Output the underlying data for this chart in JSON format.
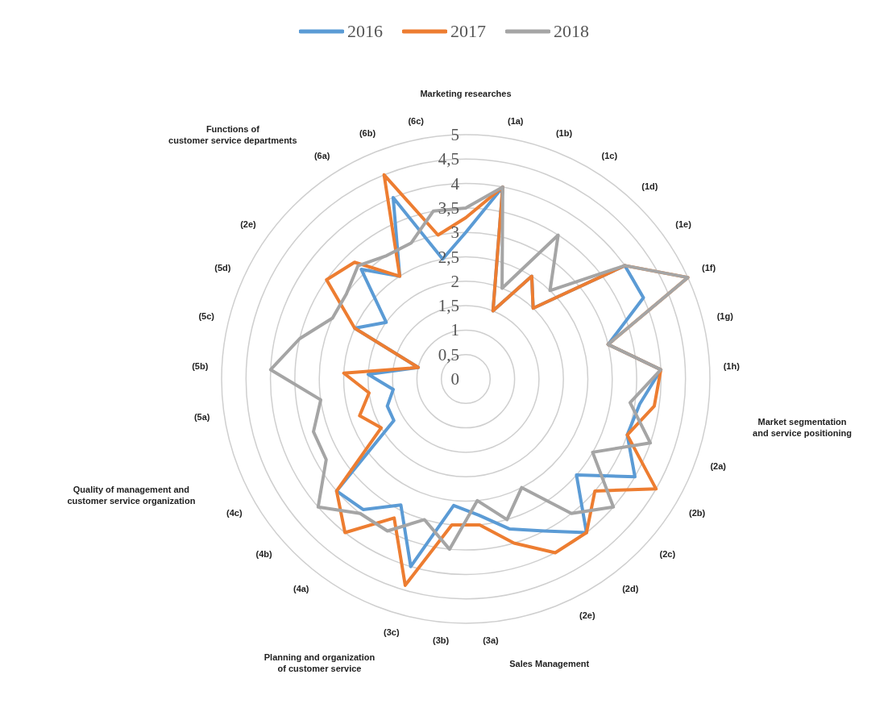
{
  "chart_data": {
    "type": "radar",
    "categories": [
      "Marketing researches",
      "(1a)",
      "(1b)",
      "(1c)",
      "(1d)",
      "(1e)",
      "(1f)",
      "(1g)",
      "(1h)",
      "Market segmentation\nand service positioning",
      "(2a)",
      "(2b)",
      "(2c)",
      "(2d)",
      "(2e)",
      "Sales Management",
      "(3a)",
      "(3b)",
      "(3c)",
      "Planning and organization\nof customer service",
      "(4a)",
      "(4b)",
      "(4c)",
      "Quality of management and\ncustomer service organization",
      "(5a)",
      "(5b)",
      "(5c)",
      "(5d)",
      "(2e)",
      "Functions of\ncustomer service departments",
      "(6a)",
      "(6b)",
      "(6c)"
    ],
    "series": [
      {
        "name": "2016",
        "color": "#5b9bd5",
        "values": [
          3.0,
          4.0,
          1.5,
          2.5,
          2.0,
          4.0,
          4.0,
          3.0,
          4.0,
          3.6,
          3.5,
          4.0,
          3.0,
          4.0,
          3.5,
          3.2,
          2.8,
          2.6,
          4.0,
          2.9,
          3.4,
          3.5,
          1.7,
          1.7,
          1.5,
          2.0,
          1.0,
          2.5,
          2.0,
          3.1,
          2.5,
          4.0,
          2.5
        ]
      },
      {
        "name": "2017",
        "color": "#ed7d31",
        "values": [
          3.3,
          4.0,
          1.5,
          2.5,
          2.0,
          4.0,
          5.0,
          3.0,
          4.0,
          3.9,
          3.5,
          4.5,
          3.5,
          4.0,
          4.0,
          3.5,
          3.0,
          3.0,
          4.4,
          3.2,
          4.0,
          3.5,
          2.0,
          2.3,
          2.0,
          2.5,
          1.0,
          2.5,
          3.5,
          3.3,
          2.5,
          4.5,
          3.0
        ]
      },
      {
        "name": "2018",
        "color": "#a5a5a5",
        "values": [
          3.5,
          4.0,
          2.0,
          3.5,
          2.5,
          4.0,
          5.0,
          3.0,
          4.0,
          3.4,
          4.0,
          3.0,
          4.0,
          3.5,
          2.5,
          3.0,
          2.5,
          3.5,
          3.0,
          3.5,
          3.5,
          4.0,
          3.3,
          3.3,
          3.0,
          4.0,
          3.5,
          3.0,
          3.0,
          3.2,
          3.0,
          3.0,
          3.5
        ]
      }
    ],
    "ylim": [
      0,
      5
    ],
    "yticks": [
      0,
      {
        "value": 0.5,
        "label": "0,5"
      },
      1,
      {
        "value": 1.5,
        "label": "1,5"
      },
      2,
      {
        "value": 2.5,
        "label": "2,5"
      },
      3,
      {
        "value": 3.5,
        "label": "3,5"
      },
      4,
      {
        "value": 4.5,
        "label": "4,5"
      },
      5
    ],
    "grid": true,
    "legend": "top",
    "line_style": "solid"
  }
}
